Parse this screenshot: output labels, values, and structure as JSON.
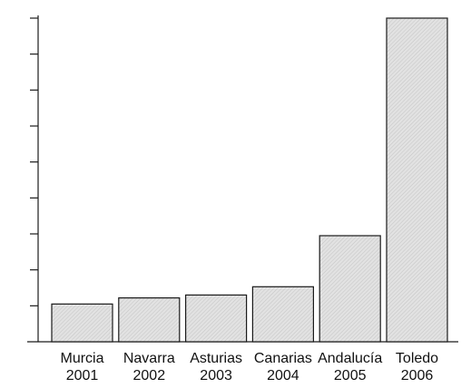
{
  "chart_data": {
    "type": "bar",
    "categories": [
      {
        "name": "Murcia",
        "year": "2001"
      },
      {
        "name": "Navarra",
        "year": "2002"
      },
      {
        "name": "Asturias",
        "year": "2003"
      },
      {
        "name": "Canarias",
        "year": "2004"
      },
      {
        "name": "Andalucía",
        "year": "2005"
      },
      {
        "name": "Toledo",
        "year": "2006"
      }
    ],
    "values": [
      1.05,
      1.22,
      1.3,
      1.53,
      2.95,
      9.0
    ],
    "title": "",
    "xlabel": "",
    "ylabel": "",
    "ylim": [
      0,
      9
    ],
    "yticks_count": 9,
    "y_tick_labels_shown": false,
    "grid": false,
    "legend": "none",
    "colors": {
      "bar_fill": "#dcdcdc",
      "bar_stroke": "#1a1a1a",
      "axis": "#1a1a1a",
      "text": "#111111"
    }
  }
}
